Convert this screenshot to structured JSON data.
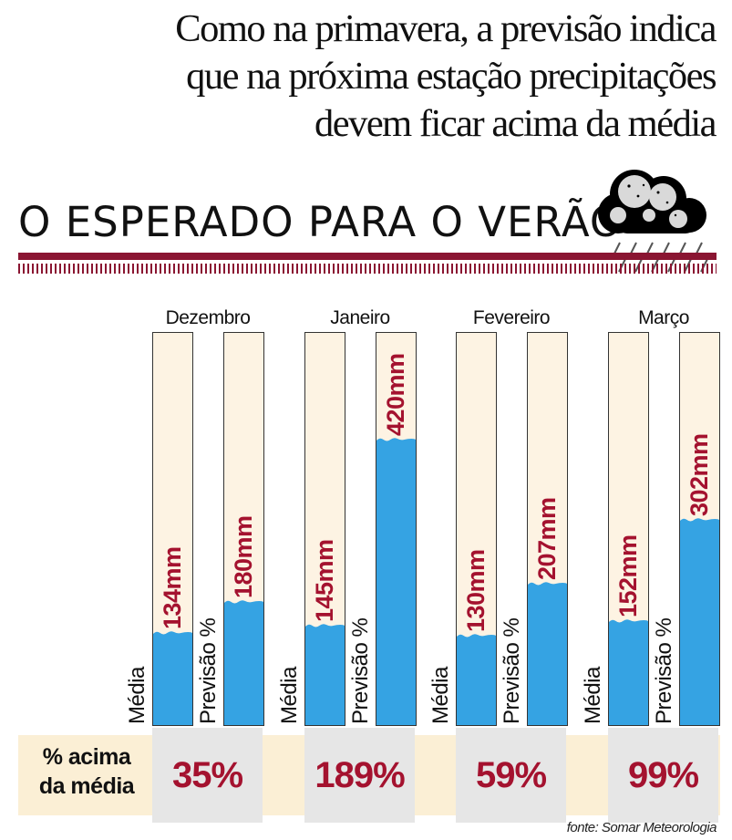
{
  "headline": "Como na primavera, a previsão indica\nque na próxima estação precipitações\ndevem ficar acima da média",
  "section_title": "O ESPERADO PARA O VERÃO*",
  "icons": [
    "rain-cloud-icon"
  ],
  "colors": {
    "accent": "#8a1532",
    "value_text": "#a4122f",
    "bar_fill": "#35a3e3",
    "bar_background": "#fdf3e3",
    "band": "#fbefd5",
    "cell": "#e6e6e6"
  },
  "percent_row_label": "% acima\nda média",
  "source": "fonte: Somar Meteorologia",
  "chart_data": {
    "type": "bar",
    "title": "O ESPERADO PARA O VERÃO*",
    "categories": [
      "Dezembro",
      "Janeiro",
      "Fevereiro",
      "Março"
    ],
    "series": [
      {
        "name": "Média",
        "values": [
          134,
          145,
          130,
          152
        ],
        "labels": [
          "134mm",
          "145mm",
          "130mm",
          "152mm"
        ]
      },
      {
        "name": "Previsão %",
        "values": [
          180,
          420,
          207,
          302
        ],
        "labels": [
          "180mm",
          "420mm",
          "207mm",
          "302mm"
        ]
      }
    ],
    "percent_above_average": [
      "35%",
      "189%",
      "59%",
      "99%"
    ],
    "unit": "mm",
    "ylim": [
      0,
      520
    ],
    "xlabel": "",
    "ylabel": ""
  }
}
